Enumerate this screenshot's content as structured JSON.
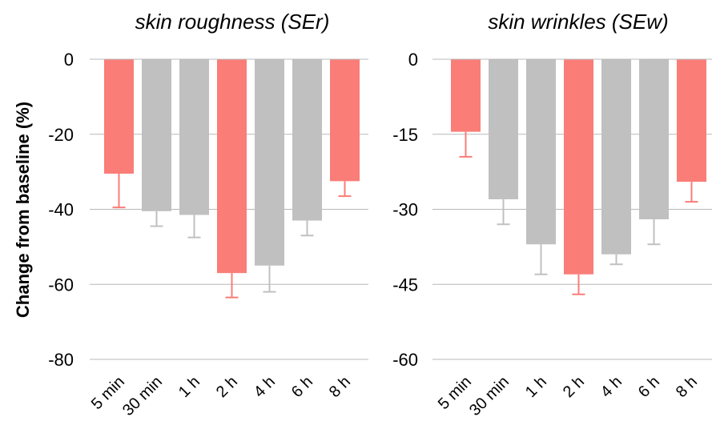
{
  "colors": {
    "highlight": "#fa7d78",
    "neutral": "#c0c0c0",
    "grid": "#b8b8b8"
  },
  "ylabel": "Change from baseline (%)",
  "chart_data": [
    {
      "type": "bar",
      "title": "skin roughness (SEr)",
      "categories": [
        "5 min",
        "30 min",
        "1 h",
        "2 h",
        "4 h",
        "6 h",
        "8 h"
      ],
      "values": [
        -30.5,
        -40.5,
        -41.5,
        -57,
        -55,
        -43,
        -32.5
      ],
      "error": [
        9,
        4,
        6,
        6.5,
        7,
        4,
        4
      ],
      "highlight": [
        true,
        false,
        false,
        true,
        false,
        false,
        true
      ],
      "ylim": [
        -80,
        0
      ],
      "yticks": [
        0,
        -20,
        -40,
        -60,
        -80
      ],
      "grid": true
    },
    {
      "type": "bar",
      "title": "skin wrinkles (SEw)",
      "categories": [
        "5 min",
        "30 min",
        "1 h",
        "2 h",
        "4 h",
        "6 h",
        "8 h"
      ],
      "values": [
        -14.5,
        -28,
        -37,
        -43,
        -39,
        -32,
        -24.5
      ],
      "error": [
        5,
        5,
        6,
        4,
        2,
        5,
        4
      ],
      "highlight": [
        true,
        false,
        false,
        true,
        false,
        false,
        true
      ],
      "ylim": [
        -60,
        0
      ],
      "yticks": [
        0,
        -15,
        -30,
        -45,
        -60
      ],
      "grid": true
    }
  ]
}
